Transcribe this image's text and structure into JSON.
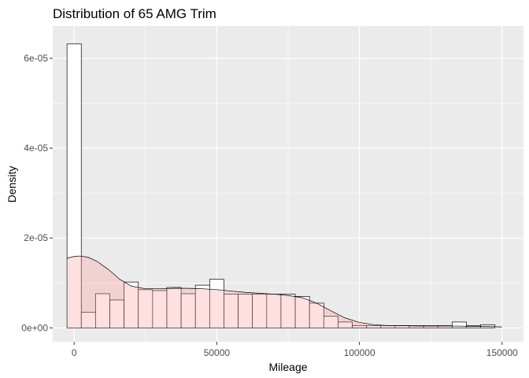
{
  "chart_data": {
    "type": "histogram",
    "title": "Distribution of 65 AMG Trim",
    "xlabel": "Mileage",
    "ylabel": "Density",
    "xlim": [
      -7500,
      157500
    ],
    "ylim": [
      -3.1e-06,
      6.72e-05
    ],
    "x_ticks": [
      0,
      50000,
      100000,
      150000
    ],
    "x_tick_labels": [
      "0",
      "50000",
      "100000",
      "150000"
    ],
    "y_ticks": [
      0,
      2e-05,
      4e-05,
      6e-05
    ],
    "y_tick_labels": [
      "0e+00",
      "2e-05",
      "4e-05",
      "6e-05"
    ],
    "grid": true,
    "legend": "none",
    "bin_width": 5000,
    "histogram": {
      "bin_start": -2500,
      "densities": [
        6.32e-05,
        3.5e-06,
        7.6e-06,
        6.2e-06,
        1.02e-05,
        8.5e-06,
        8.3e-06,
        9e-06,
        7.6e-06,
        9.5e-06,
        1.08e-05,
        7.5e-06,
        7.5e-06,
        7.5e-06,
        7.5e-06,
        7.5e-06,
        7e-06,
        5.5e-06,
        2.6e-06,
        1.3e-06,
        5e-07,
        5e-07,
        5e-07,
        5e-07,
        5e-07,
        5e-07,
        5e-07,
        1.3e-06,
        5e-07,
        7e-07
      ],
      "fill": "#ffffff",
      "stroke": "#000000"
    },
    "density_curve": {
      "x": [
        -2500,
        0,
        2000,
        5000,
        8000,
        12000,
        16000,
        20000,
        25000,
        30000,
        35000,
        40000,
        45000,
        50000,
        55000,
        60000,
        65000,
        70000,
        75000,
        80000,
        85000,
        90000,
        95000,
        100000,
        105000,
        110000,
        115000,
        120000,
        125000,
        130000,
        135000,
        140000,
        145000,
        150000
      ],
      "y": [
        1.55e-05,
        1.59e-05,
        1.6e-05,
        1.57e-05,
        1.48e-05,
        1.3e-05,
        1.08e-05,
        9.3e-06,
        8.7e-06,
        8.7e-06,
        8.8e-06,
        8.8e-06,
        8.7e-06,
        8.5e-06,
        8.2e-06,
        7.9e-06,
        7.7e-06,
        7.5e-06,
        7.2e-06,
        6.7e-06,
        5.5e-06,
        3.8e-06,
        2.2e-06,
        1.2e-06,
        7e-07,
        5e-07,
        5e-07,
        4e-07,
        4e-07,
        4e-07,
        4e-07,
        3e-07,
        3e-07,
        2e-07
      ],
      "fill": "#ff9999",
      "fill_opacity": 0.3,
      "stroke": "#000000"
    },
    "panel_background": "#ebebeb",
    "grid_color": "#ffffff"
  }
}
